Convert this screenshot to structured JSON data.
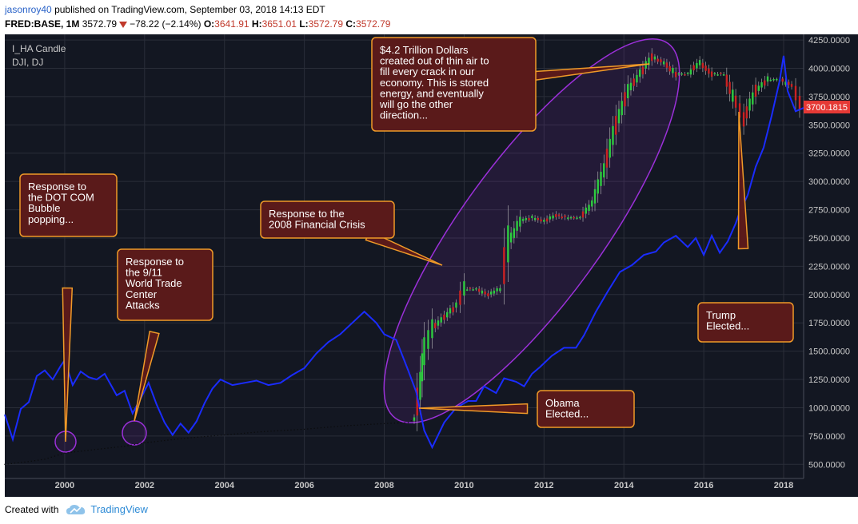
{
  "header": {
    "author": "jasonroy40",
    "published": "published on TradingView.com, September 03, 2018 14:13 EDT",
    "symbol": "FRED:BASE, 1M",
    "last": "3572.79",
    "change": "−78.22 (−2.14%)",
    "o_label": "O:",
    "o": "3641.91",
    "h_label": "H:",
    "h": "3651.01",
    "l_label": "L:",
    "l": "3572.79",
    "c_label": "C:",
    "c": "3572.79"
  },
  "legend": {
    "line1": "I_HA Candle",
    "line2": "DJI, DJ"
  },
  "price_tag": "3700.1815",
  "footer": {
    "created_with": "Created with",
    "brand": "TradingView"
  },
  "colors": {
    "background": "#131722",
    "grid": "#2a2e39",
    "dji_line": "#1a2cff",
    "bull": "#2ecc40",
    "bear": "#cc2222",
    "annotation_fill": "#5a1a1a",
    "annotation_border": "#f09a28",
    "ellipse": "#9b30d9",
    "price_tag": "#e53935"
  },
  "annotations": [
    {
      "id": "dotcom",
      "lines": [
        "Response to",
        "the DOT COM",
        "Bubble",
        "popping..."
      ]
    },
    {
      "id": "nine-eleven",
      "lines": [
        "Response to",
        "the 9/11",
        "World Trade",
        "Center",
        "Attacks"
      ]
    },
    {
      "id": "crisis",
      "lines": [
        "Response to the",
        "2008 Financial Crisis"
      ]
    },
    {
      "id": "trillion",
      "lines": [
        "$4.2 Trillion Dollars",
        "created out of thin air to",
        "fill every crack in our",
        "economy. This is stored",
        "energy, and eventually",
        "will go the other",
        "direction..."
      ]
    },
    {
      "id": "obama",
      "lines": [
        "Obama",
        "Elected..."
      ]
    },
    {
      "id": "trump",
      "lines": [
        "Trump",
        "Elected..."
      ]
    }
  ],
  "chart_data": {
    "type": "line",
    "xlabel": "",
    "ylabel": "",
    "xlim": [
      1998.5,
      2018.5
    ],
    "ylim": [
      375,
      4300
    ],
    "x_ticks": [
      "2000",
      "2002",
      "2004",
      "2006",
      "2008",
      "2010",
      "2012",
      "2014",
      "2016",
      "2018"
    ],
    "y_ticks": [
      "500.0000",
      "750.0000",
      "1000.0000",
      "1250.0000",
      "1500.0000",
      "1750.0000",
      "2000.0000",
      "2250.0000",
      "2500.0000",
      "2750.0000",
      "3000.0000",
      "3250.0000",
      "3500.0000",
      "3750.0000",
      "4000.0000",
      "4250.0000"
    ],
    "series": [
      {
        "name": "DJI, DJ",
        "x": [
          1998.5,
          1998.7,
          1998.9,
          1999.1,
          1999.3,
          1999.5,
          1999.7,
          1999.9,
          2000.0,
          2000.2,
          2000.4,
          2000.6,
          2000.8,
          2001.0,
          2001.3,
          2001.5,
          2001.7,
          2001.9,
          2002.1,
          2002.3,
          2002.5,
          2002.7,
          2002.9,
          2003.1,
          2003.3,
          2003.5,
          2003.7,
          2003.9,
          2004.2,
          2004.5,
          2004.8,
          2005.1,
          2005.4,
          2005.7,
          2006.0,
          2006.3,
          2006.6,
          2006.9,
          2007.2,
          2007.5,
          2007.8,
          2008.0,
          2008.3,
          2008.6,
          2008.8,
          2009.0,
          2009.2,
          2009.5,
          2009.8,
          2010.1,
          2010.3,
          2010.5,
          2010.8,
          2011.0,
          2011.3,
          2011.5,
          2011.7,
          2011.9,
          2012.2,
          2012.5,
          2012.8,
          2013.0,
          2013.3,
          2013.6,
          2013.9,
          2014.2,
          2014.5,
          2014.8,
          2015.0,
          2015.3,
          2015.6,
          2015.8,
          2016.0,
          2016.2,
          2016.4,
          2016.6,
          2016.8,
          2016.9,
          2017.1,
          2017.3,
          2017.5,
          2017.7,
          2017.9,
          2018.0,
          2018.1,
          2018.3,
          2018.5
        ],
        "y": [
          940,
          720,
          990,
          1050,
          1280,
          1330,
          1250,
          1370,
          1420,
          1200,
          1320,
          1270,
          1250,
          1300,
          1110,
          1150,
          950,
          1080,
          1220,
          1030,
          870,
          760,
          860,
          780,
          880,
          1040,
          1170,
          1250,
          1200,
          1220,
          1240,
          1200,
          1220,
          1290,
          1350,
          1480,
          1580,
          1650,
          1750,
          1850,
          1750,
          1650,
          1600,
          1330,
          1140,
          800,
          650,
          870,
          1000,
          1060,
          1060,
          1190,
          1130,
          1260,
          1230,
          1190,
          1300,
          1360,
          1460,
          1530,
          1530,
          1640,
          1850,
          2030,
          2200,
          2260,
          2350,
          2380,
          2460,
          2520,
          2420,
          2500,
          2350,
          2520,
          2370,
          2470,
          2630,
          2730,
          2880,
          3130,
          3300,
          3580,
          3890,
          4110,
          3800,
          3620,
          3650
        ]
      },
      {
        "name": "I_HA Candle",
        "x": [
          1998.5,
          1999.0,
          1999.5,
          2000.0,
          2000.5,
          2001.0,
          2001.5,
          2002.0,
          2003.0,
          2004.0,
          2005.0,
          2006.0,
          2007.0,
          2008.0,
          2008.6,
          2008.75,
          2008.9,
          2009.0,
          2009.2,
          2009.5,
          2009.8,
          2010.0,
          2010.3,
          2010.6,
          2010.9,
          2011.1,
          2011.4,
          2011.7,
          2012.0,
          2012.3,
          2012.6,
          2012.9,
          2013.2,
          2013.5,
          2013.8,
          2014.1,
          2014.4,
          2014.7,
          2015.0,
          2015.3,
          2015.6,
          2015.9,
          2016.2,
          2016.5,
          2016.8,
          2017.0,
          2017.3,
          2017.6,
          2017.9,
          2018.2,
          2018.4
        ],
        "y": [
          500,
          520,
          545,
          600,
          620,
          640,
          660,
          690,
          730,
          760,
          790,
          810,
          840,
          860,
          870,
          900,
          1200,
          1500,
          1700,
          1800,
          1900,
          2050,
          2050,
          2000,
          2050,
          2450,
          2650,
          2680,
          2650,
          2700,
          2680,
          2680,
          2800,
          3100,
          3500,
          3800,
          3950,
          4100,
          4050,
          3950,
          3950,
          4050,
          3950,
          3950,
          3700,
          3550,
          3800,
          3900,
          3900,
          3850,
          3700
        ]
      }
    ]
  }
}
